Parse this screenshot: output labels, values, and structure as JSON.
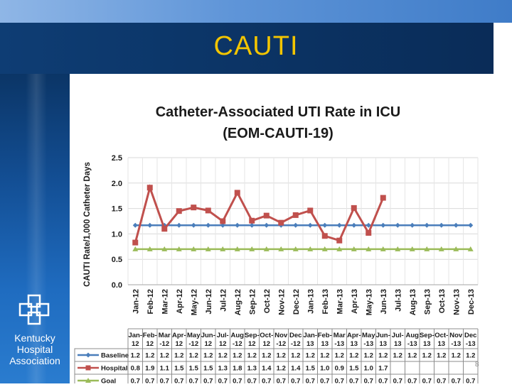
{
  "slide": {
    "title": "CAUTI",
    "page_number": "8",
    "logo": {
      "line1": "Kentucky",
      "line2": "Hospital",
      "line3": "Association",
      "icon": "interlocking-squares-icon"
    }
  },
  "chart_data": {
    "type": "line",
    "title": "Catheter-Associated UTI Rate in ICU",
    "subtitle": "(EOM-CAUTI-19)",
    "xlabel": "",
    "ylabel": "CAUTI Rate/1,000 Catheter Days",
    "ylim": [
      0,
      2.5
    ],
    "yticks": [
      "0.0",
      "0.5",
      "1.0",
      "1.5",
      "2.0",
      "2.5"
    ],
    "yticks_values": [
      0,
      0.5,
      1.0,
      1.5,
      2.0,
      2.5
    ],
    "grid": true,
    "categories": [
      "Jan-12",
      "Feb-12",
      "Mar-12",
      "Apr-12",
      "May-12",
      "Jun-12",
      "Jul-12",
      "Aug-12",
      "Sep-12",
      "Oct-12",
      "Nov-12",
      "Dec-12",
      "Jan-13",
      "Feb-13",
      "Mar-13",
      "Apr-13",
      "May-13",
      "Jun-13",
      "Jul-13",
      "Aug-13",
      "Sep-13",
      "Oct-13",
      "Nov-13",
      "Dec-13"
    ],
    "table_headers": [
      [
        "Jan-",
        "12"
      ],
      [
        "Feb-",
        "12"
      ],
      [
        "Mar",
        "-12"
      ],
      [
        "Apr-",
        "12"
      ],
      [
        "May",
        "-12"
      ],
      [
        "Jun-",
        "12"
      ],
      [
        "Jul-",
        "12"
      ],
      [
        "Aug",
        "-12"
      ],
      [
        "Sep-",
        "12"
      ],
      [
        "Oct-",
        "12"
      ],
      [
        "Nov",
        "-12"
      ],
      [
        "Dec",
        "-12"
      ],
      [
        "Jan-",
        "13"
      ],
      [
        "Feb-",
        "13"
      ],
      [
        "Mar",
        "-13"
      ],
      [
        "Apr-",
        "13"
      ],
      [
        "May",
        "-13"
      ],
      [
        "Jun-",
        "13"
      ],
      [
        "Jul-",
        "13"
      ],
      [
        "Aug",
        "-13"
      ],
      [
        "Sep-",
        "13"
      ],
      [
        "Oct-",
        "13"
      ],
      [
        "Nov",
        "-13"
      ],
      [
        "Dec",
        "-13"
      ]
    ],
    "series": [
      {
        "name": "Baseline",
        "color": "#4a7ebb",
        "marker": "diamond",
        "values": [
          1.17,
          1.17,
          1.17,
          1.17,
          1.17,
          1.17,
          1.17,
          1.17,
          1.17,
          1.17,
          1.17,
          1.17,
          1.17,
          1.17,
          1.17,
          1.17,
          1.17,
          1.17,
          1.17,
          1.17,
          1.17,
          1.17,
          1.17,
          1.17
        ],
        "table": [
          "1.2",
          "1.2",
          "1.2",
          "1.2",
          "1.2",
          "1.2",
          "1.2",
          "1.2",
          "1.2",
          "1.2",
          "1.2",
          "1.2",
          "1.2",
          "1.2",
          "1.2",
          "1.2",
          "1.2",
          "1.2",
          "1.2",
          "1.2",
          "1.2",
          "1.2",
          "1.2",
          "1.2"
        ]
      },
      {
        "name": "Hospital",
        "color": "#c0504d",
        "marker": "square",
        "values": [
          0.83,
          1.91,
          1.1,
          1.45,
          1.52,
          1.46,
          1.25,
          1.81,
          1.26,
          1.36,
          1.22,
          1.37,
          1.46,
          0.96,
          0.87,
          1.51,
          1.02,
          1.71,
          null,
          null,
          null,
          null,
          null,
          null
        ],
        "table": [
          "0.8",
          "1.9",
          "1.1",
          "1.5",
          "1.5",
          "1.5",
          "1.3",
          "1.8",
          "1.3",
          "1.4",
          "1.2",
          "1.4",
          "1.5",
          "1.0",
          "0.9",
          "1.5",
          "1.0",
          "1.7",
          "",
          "",
          "",
          "",
          "",
          ""
        ]
      },
      {
        "name": "Goal",
        "color": "#9bbb59",
        "marker": "triangle",
        "values": [
          0.7,
          0.7,
          0.7,
          0.7,
          0.7,
          0.7,
          0.7,
          0.7,
          0.7,
          0.7,
          0.7,
          0.7,
          0.7,
          0.7,
          0.7,
          0.7,
          0.7,
          0.7,
          0.7,
          0.7,
          0.7,
          0.7,
          0.7,
          0.7
        ],
        "table": [
          "0.7",
          "0.7",
          "0.7",
          "0.7",
          "0.7",
          "0.7",
          "0.7",
          "0.7",
          "0.7",
          "0.7",
          "0.7",
          "0.7",
          "0.7",
          "0.7",
          "0.7",
          "0.7",
          "0.7",
          "0.7",
          "0.7",
          "0.7",
          "0.7",
          "0.7",
          "0.7",
          "0.7"
        ]
      }
    ]
  }
}
